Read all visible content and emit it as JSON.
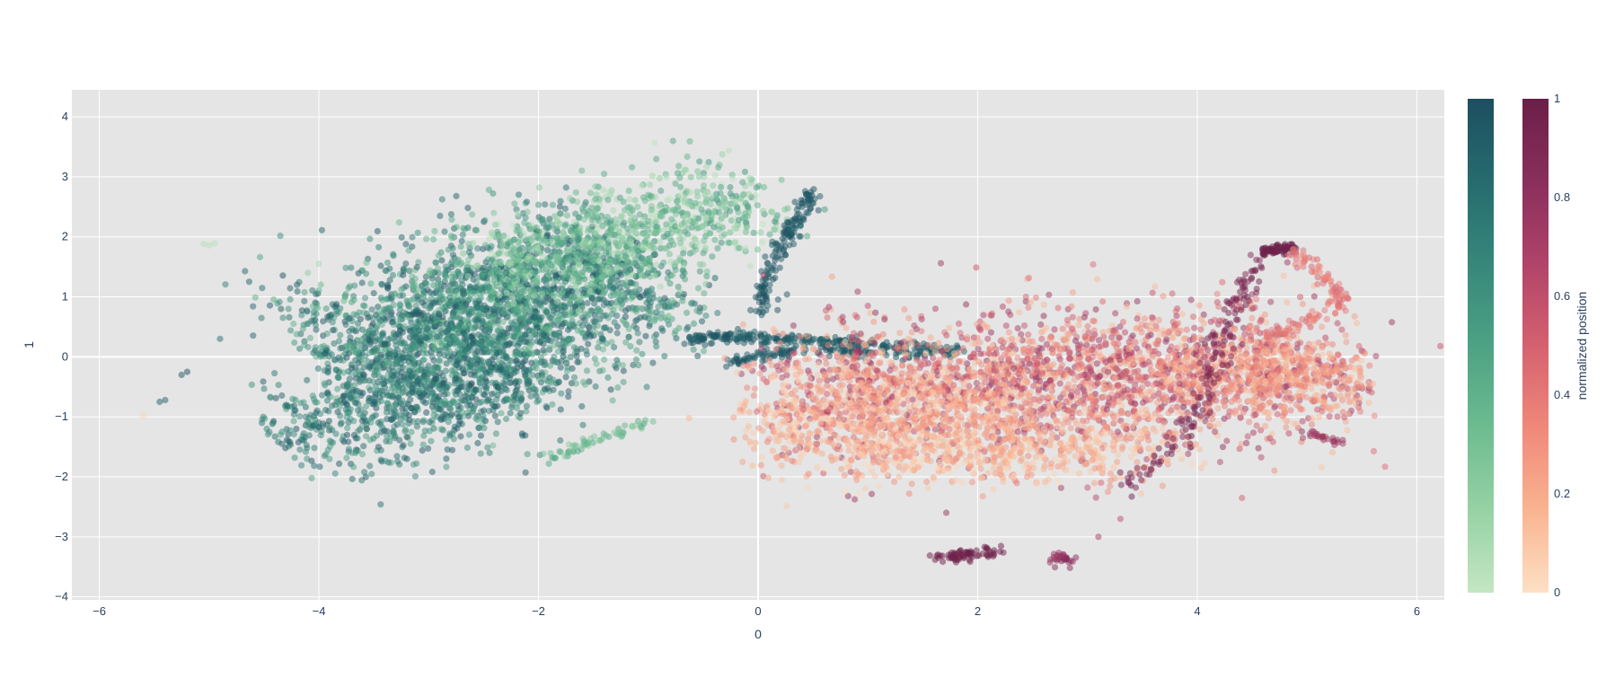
{
  "chart_data": {
    "type": "scatter",
    "title": "",
    "xlabel": "0",
    "ylabel": "1",
    "xlim": [
      -6.25,
      6.25
    ],
    "ylim": [
      -4.05,
      4.45
    ],
    "x_ticks": [
      -6,
      -4,
      -2,
      0,
      2,
      4,
      6
    ],
    "x_tick_labels": [
      "−6",
      "−4",
      "−2",
      "0",
      "2",
      "4",
      "6"
    ],
    "y_ticks": [
      -4,
      -3,
      -2,
      -1,
      0,
      1,
      2,
      3,
      4
    ],
    "y_tick_labels": [
      "−4",
      "−3",
      "−2",
      "−1",
      "0",
      "1",
      "2",
      "3",
      "4"
    ],
    "grid": true,
    "plot_bgcolor": "#e5e5e5",
    "gridcolor": "#ffffff",
    "marker_opacity": 0.5,
    "series": [
      {
        "colorscale": [
          "#c4e6c3",
          "#96d2a4",
          "#6dbc90",
          "#4da284",
          "#36877a",
          "#266b6e",
          "#1d4f60"
        ],
        "cmin": 0,
        "cmax": 1,
        "clusters": [
          {
            "cx": -2.4,
            "cy": 0.7,
            "sx": 1.05,
            "sy": 1.15,
            "rot": 0.62,
            "n": 2600,
            "c": [
              0.35,
              1.0
            ]
          },
          {
            "cx": -1.2,
            "cy": 2.0,
            "sx": 0.9,
            "sy": 0.7,
            "rot": 0.5,
            "n": 900,
            "c": [
              0.0,
              0.6
            ]
          },
          {
            "cx": -3.2,
            "cy": -0.8,
            "sx": 0.8,
            "sy": 0.8,
            "rot": 0.5,
            "n": 700,
            "c": [
              0.5,
              1.0
            ]
          }
        ],
        "paths": [
          {
            "pts": [
              [
                -0.6,
                0.3
              ],
              [
                -0.2,
                0.35
              ],
              [
                0.2,
                0.3
              ],
              [
                0.7,
                0.25
              ],
              [
                1.3,
                0.18
              ],
              [
                1.85,
                0.05
              ]
            ],
            "n": 260,
            "spread": 0.05,
            "c": [
              0.85,
              1.0
            ]
          },
          {
            "pts": [
              [
                0.0,
                0.75
              ],
              [
                0.1,
                1.3
              ],
              [
                0.2,
                1.8
              ],
              [
                0.35,
                2.3
              ],
              [
                0.5,
                2.75
              ]
            ],
            "n": 160,
            "spread": 0.05,
            "c": [
              0.9,
              1.0
            ]
          },
          {
            "pts": [
              [
                -0.25,
                -0.1
              ],
              [
                0.0,
                0.0
              ],
              [
                0.3,
                0.1
              ],
              [
                0.9,
                0.1
              ],
              [
                1.5,
                0.0
              ]
            ],
            "n": 120,
            "spread": 0.05,
            "c": [
              0.9,
              1.0
            ]
          },
          {
            "pts": [
              [
                -1.9,
                -1.7
              ],
              [
                -1.5,
                -1.4
              ],
              [
                -1.0,
                -1.1
              ]
            ],
            "n": 60,
            "spread": 0.05,
            "c": [
              0.2,
              0.5
            ]
          }
        ],
        "points": [
          {
            "x": -5.2,
            "y": -0.25,
            "c": 1.0
          },
          {
            "x": -5.25,
            "y": -0.3,
            "c": 0.95
          },
          {
            "x": -5.4,
            "y": -0.72,
            "c": 0.9
          },
          {
            "x": -5.45,
            "y": -0.75,
            "c": 0.9
          },
          {
            "x": -4.6,
            "y": 0.84,
            "c": 0.85
          },
          {
            "x": -4.9,
            "y": 0.3,
            "c": 0.8
          },
          {
            "x": -5.05,
            "y": 1.88,
            "c": 0.05
          },
          {
            "x": -4.95,
            "y": 1.89,
            "c": 0.05
          },
          {
            "x": -5.0,
            "y": 1.86,
            "c": 0.05
          },
          {
            "x": -4.0,
            "y": 1.55,
            "c": 0.1
          },
          {
            "x": -4.1,
            "y": 1.4,
            "c": 0.2
          },
          {
            "x": -4.2,
            "y": 1.2,
            "c": 0.9
          }
        ]
      },
      {
        "name": "normalized position",
        "colorscale": [
          "#fde0c5",
          "#f9b490",
          "#f0887a",
          "#d5616f",
          "#b04369",
          "#892f5c",
          "#6b1f48"
        ],
        "cmin": 0,
        "cmax": 1,
        "clusters": [
          {
            "cx": 2.75,
            "cy": -0.4,
            "sx": 1.65,
            "sy": 1.05,
            "rot": 0.12,
            "n": 2400,
            "c": [
              0.1,
              0.8
            ]
          },
          {
            "cx": 1.2,
            "cy": -1.0,
            "sx": 0.8,
            "sy": 0.8,
            "rot": 0.1,
            "n": 800,
            "c": [
              0.0,
              0.35
            ]
          },
          {
            "cx": 4.6,
            "cy": -0.3,
            "sx": 0.6,
            "sy": 0.6,
            "rot": 0.0,
            "n": 450,
            "c": [
              0.1,
              0.4
            ]
          },
          {
            "cx": 2.4,
            "cy": -1.6,
            "sx": 1.0,
            "sy": 0.5,
            "rot": 0.05,
            "n": 450,
            "c": [
              0.0,
              0.3
            ]
          }
        ],
        "paths": [
          {
            "pts": [
              [
                4.6,
                1.75
              ],
              [
                4.85,
                1.82
              ]
            ],
            "n": 70,
            "spread": 0.035,
            "c": [
              0.97,
              1.0
            ]
          },
          {
            "pts": [
              [
                4.85,
                1.8
              ],
              [
                5.1,
                1.4
              ],
              [
                5.35,
                0.95
              ],
              [
                5.0,
                0.6
              ],
              [
                4.6,
                0.3
              ]
            ],
            "n": 120,
            "spread": 0.05,
            "c": [
              0.3,
              0.5
            ]
          },
          {
            "pts": [
              [
                4.55,
                1.6
              ],
              [
                4.3,
                0.7
              ],
              [
                4.1,
                -0.5
              ],
              [
                3.8,
                -1.5
              ],
              [
                3.3,
                -2.2
              ]
            ],
            "n": 160,
            "spread": 0.07,
            "c": [
              0.85,
              1.0
            ]
          },
          {
            "pts": [
              [
                1.65,
                -3.35
              ],
              [
                1.9,
                -3.3
              ],
              [
                2.2,
                -3.22
              ]
            ],
            "n": 70,
            "spread": 0.05,
            "c": [
              0.97,
              1.0
            ]
          },
          {
            "pts": [
              [
                2.7,
                -3.3
              ],
              [
                2.85,
                -3.45
              ]
            ],
            "n": 30,
            "spread": 0.05,
            "c": [
              0.75,
              0.9
            ]
          },
          {
            "pts": [
              [
                5.0,
                -1.3
              ],
              [
                5.3,
                -1.4
              ]
            ],
            "n": 25,
            "spread": 0.05,
            "c": [
              0.7,
              0.85
            ]
          }
        ],
        "points": [
          {
            "x": -5.6,
            "y": -0.98,
            "c": 0.05
          },
          {
            "x": 1.0,
            "y": 0.85,
            "c": 0.6
          },
          {
            "x": 3.1,
            "y": -3.0,
            "c": 0.7
          },
          {
            "x": 3.3,
            "y": -2.7,
            "c": 0.6
          },
          {
            "x": 5.5,
            "y": -0.5,
            "c": 0.3
          }
        ]
      }
    ],
    "colorbars": [
      {
        "title": "",
        "tick_values": [],
        "tick_labels": []
      },
      {
        "title": "normalized position",
        "tick_values": [
          0,
          0.2,
          0.4,
          0.6,
          0.8,
          1
        ],
        "tick_labels": [
          "0",
          "0.2",
          "0.4",
          "0.6",
          "0.8",
          "1"
        ]
      }
    ]
  }
}
